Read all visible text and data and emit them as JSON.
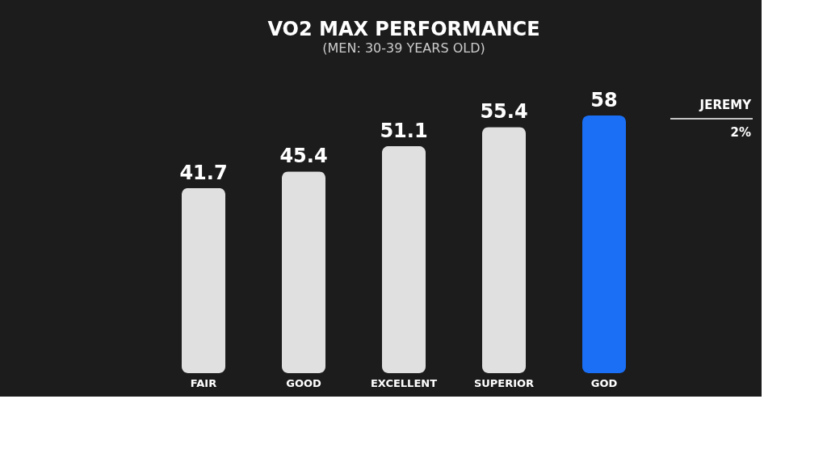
{
  "chart_data": {
    "type": "bar",
    "title": "VO2 MAX PERFORMANCE",
    "subtitle": "(MEN: 30-39 YEARS OLD)",
    "categories": [
      "FAIR",
      "GOOD",
      "EXCELLENT",
      "SUPERIOR",
      "GOD"
    ],
    "values": [
      41.7,
      45.4,
      51.1,
      55.4,
      58
    ],
    "colors": [
      "#e0e0e0",
      "#e0e0e0",
      "#e0e0e0",
      "#e0e0e0",
      "#1a6ff5"
    ],
    "tick_labels": "x",
    "grid": false,
    "data_labels": true,
    "annotations": [
      "JEREMY",
      "2%"
    ]
  }
}
